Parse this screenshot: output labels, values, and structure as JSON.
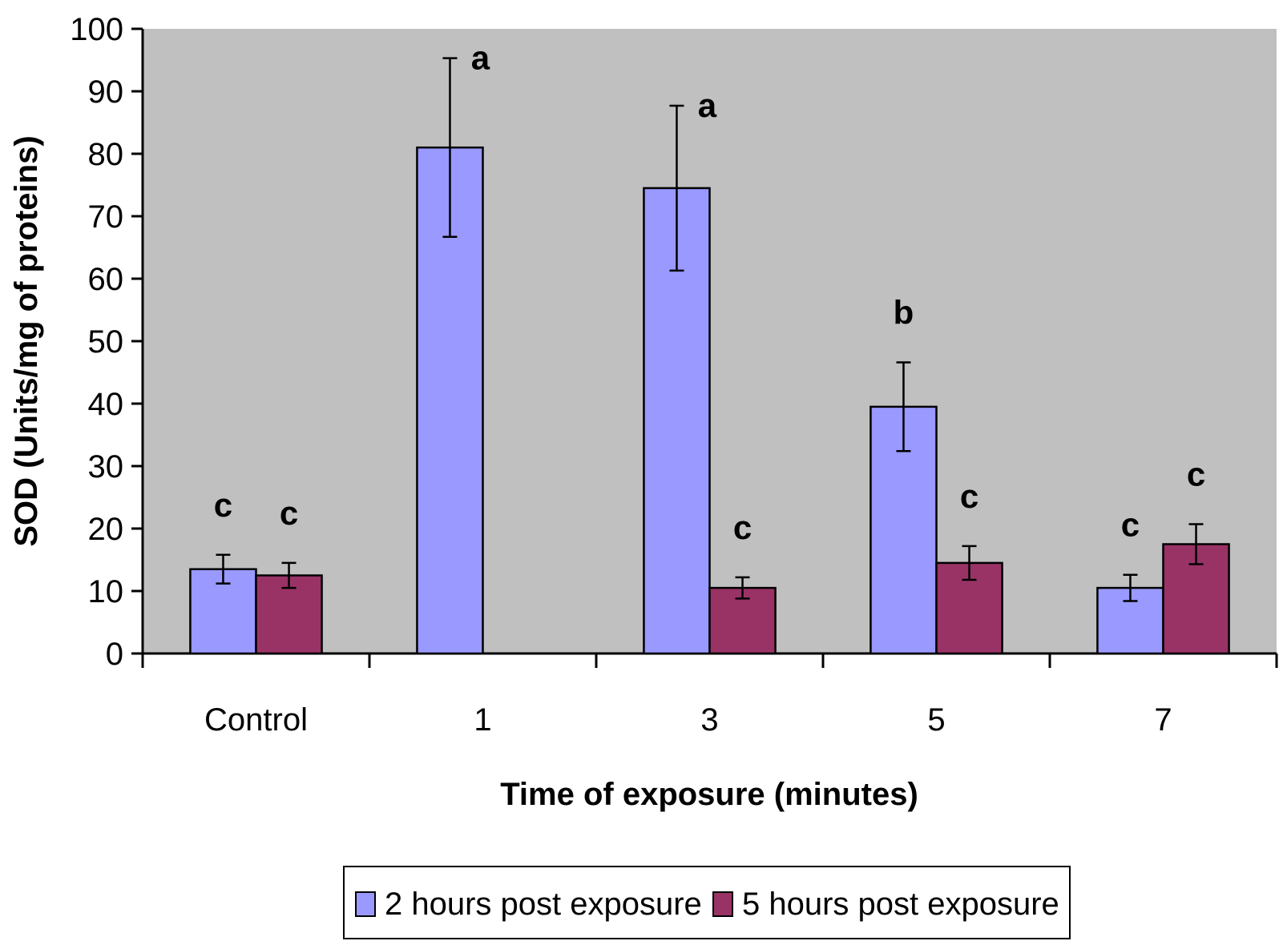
{
  "chart_data": {
    "type": "bar",
    "xlabel": "Time of exposure (minutes)",
    "ylabel": "SOD (Units/mg of proteins)",
    "ylim": [
      0,
      100
    ],
    "yticks": [
      0,
      10,
      20,
      30,
      40,
      50,
      60,
      70,
      80,
      90,
      100
    ],
    "categories": [
      "Control",
      "1",
      "3",
      "5",
      "7"
    ],
    "series": [
      {
        "name": "2 hours post exposure",
        "color": "#9999ff",
        "values": [
          13.5,
          81,
          74.5,
          39.5,
          10.5
        ],
        "errors": [
          2.3,
          14.3,
          13.2,
          7.1,
          2.1
        ],
        "letters": [
          "c",
          "a",
          "a",
          "b",
          "c"
        ]
      },
      {
        "name": "5 hours post exposure",
        "color": "#993366",
        "values": [
          12.5,
          null,
          10.5,
          14.5,
          17.5
        ],
        "errors": [
          2.0,
          null,
          1.7,
          2.7,
          3.2
        ],
        "letters": [
          "c",
          "",
          "c",
          "c",
          "c"
        ]
      }
    ],
    "plot_background": "#c0c0c0",
    "grid": false,
    "legend_position": "bottom"
  }
}
